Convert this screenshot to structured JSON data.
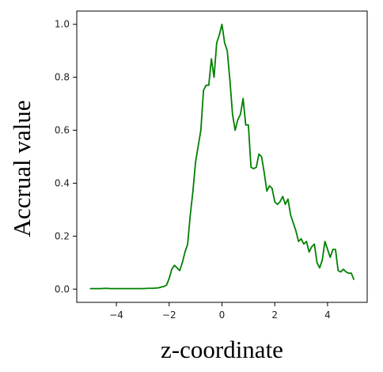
{
  "chart_data": {
    "type": "line",
    "title": "",
    "xlabel": "z-coordinate",
    "ylabel": "Accrual value",
    "xlim": [
      -5.5,
      5.5
    ],
    "ylim": [
      -0.05,
      1.05
    ],
    "xticks": [
      -4,
      -2,
      0,
      2,
      4
    ],
    "yticks": [
      0.0,
      0.2,
      0.4,
      0.6,
      0.8,
      1.0
    ],
    "xtick_labels": [
      "−4",
      "−2",
      "0",
      "2",
      "4"
    ],
    "ytick_labels": [
      "0.0",
      "0.2",
      "0.4",
      "0.6",
      "0.8",
      "1.0"
    ],
    "grid": false,
    "legend": "none",
    "series": [
      {
        "color": "#008000",
        "points": [
          [
            -5.0,
            0.002
          ],
          [
            -4.8,
            0.002
          ],
          [
            -4.6,
            0.002
          ],
          [
            -4.4,
            0.003
          ],
          [
            -4.2,
            0.002
          ],
          [
            -4.0,
            0.002
          ],
          [
            -3.8,
            0.002
          ],
          [
            -3.6,
            0.002
          ],
          [
            -3.4,
            0.002
          ],
          [
            -3.2,
            0.002
          ],
          [
            -3.0,
            0.002
          ],
          [
            -2.8,
            0.003
          ],
          [
            -2.6,
            0.003
          ],
          [
            -2.4,
            0.005
          ],
          [
            -2.2,
            0.01
          ],
          [
            -2.1,
            0.015
          ],
          [
            -2.0,
            0.04
          ],
          [
            -1.9,
            0.075
          ],
          [
            -1.8,
            0.09
          ],
          [
            -1.7,
            0.08
          ],
          [
            -1.6,
            0.07
          ],
          [
            -1.5,
            0.1
          ],
          [
            -1.4,
            0.14
          ],
          [
            -1.3,
            0.17
          ],
          [
            -1.2,
            0.28
          ],
          [
            -1.1,
            0.37
          ],
          [
            -1.0,
            0.48
          ],
          [
            -0.9,
            0.54
          ],
          [
            -0.8,
            0.6
          ],
          [
            -0.7,
            0.75
          ],
          [
            -0.6,
            0.77
          ],
          [
            -0.5,
            0.77
          ],
          [
            -0.4,
            0.87
          ],
          [
            -0.3,
            0.8
          ],
          [
            -0.2,
            0.93
          ],
          [
            -0.1,
            0.96
          ],
          [
            0.0,
            1.0
          ],
          [
            0.1,
            0.93
          ],
          [
            0.2,
            0.9
          ],
          [
            0.3,
            0.79
          ],
          [
            0.4,
            0.66
          ],
          [
            0.5,
            0.6
          ],
          [
            0.6,
            0.64
          ],
          [
            0.7,
            0.66
          ],
          [
            0.8,
            0.72
          ],
          [
            0.9,
            0.62
          ],
          [
            1.0,
            0.62
          ],
          [
            1.1,
            0.46
          ],
          [
            1.2,
            0.455
          ],
          [
            1.3,
            0.46
          ],
          [
            1.4,
            0.51
          ],
          [
            1.5,
            0.5
          ],
          [
            1.6,
            0.44
          ],
          [
            1.7,
            0.37
          ],
          [
            1.8,
            0.39
          ],
          [
            1.9,
            0.38
          ],
          [
            2.0,
            0.33
          ],
          [
            2.1,
            0.32
          ],
          [
            2.2,
            0.33
          ],
          [
            2.3,
            0.35
          ],
          [
            2.4,
            0.32
          ],
          [
            2.5,
            0.34
          ],
          [
            2.6,
            0.28
          ],
          [
            2.7,
            0.25
          ],
          [
            2.8,
            0.22
          ],
          [
            2.9,
            0.18
          ],
          [
            3.0,
            0.19
          ],
          [
            3.1,
            0.17
          ],
          [
            3.2,
            0.18
          ],
          [
            3.3,
            0.14
          ],
          [
            3.4,
            0.16
          ],
          [
            3.5,
            0.17
          ],
          [
            3.6,
            0.1
          ],
          [
            3.7,
            0.08
          ],
          [
            3.8,
            0.11
          ],
          [
            3.9,
            0.18
          ],
          [
            4.0,
            0.15
          ],
          [
            4.1,
            0.12
          ],
          [
            4.2,
            0.15
          ],
          [
            4.3,
            0.15
          ],
          [
            4.4,
            0.07
          ],
          [
            4.5,
            0.065
          ],
          [
            4.6,
            0.075
          ],
          [
            4.7,
            0.065
          ],
          [
            4.8,
            0.06
          ],
          [
            4.9,
            0.06
          ],
          [
            5.0,
            0.035
          ]
        ]
      }
    ]
  }
}
